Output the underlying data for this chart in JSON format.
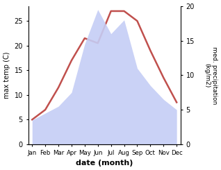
{
  "months": [
    "Jan",
    "Feb",
    "Mar",
    "Apr",
    "May",
    "Jun",
    "Jul",
    "Aug",
    "Sep",
    "Oct",
    "Nov",
    "Dec"
  ],
  "month_positions": [
    0,
    1,
    2,
    3,
    4,
    5,
    6,
    7,
    8,
    9,
    10,
    11
  ],
  "temp": [
    5.0,
    7.0,
    11.5,
    17.0,
    21.5,
    20.5,
    27.0,
    27.0,
    25.0,
    19.0,
    13.5,
    8.5
  ],
  "precip": [
    3.5,
    4.5,
    5.5,
    7.5,
    14.5,
    19.5,
    16.0,
    18.0,
    11.0,
    8.5,
    6.5,
    5.0
  ],
  "temp_color": "#c0504d",
  "precip_fill_color": "#c5cdf5",
  "ylabel_left": "max temp (C)",
  "ylabel_right": "med. precipitation\n(kg/m2)",
  "xlabel": "date (month)",
  "ylim_left": [
    0,
    28
  ],
  "ylim_right": [
    0,
    20
  ],
  "yticks_left": [
    0,
    5,
    10,
    15,
    20,
    25
  ],
  "yticks_right": [
    0,
    5,
    10,
    15,
    20
  ],
  "temp_linewidth": 1.8,
  "bg_color": "#ffffff"
}
